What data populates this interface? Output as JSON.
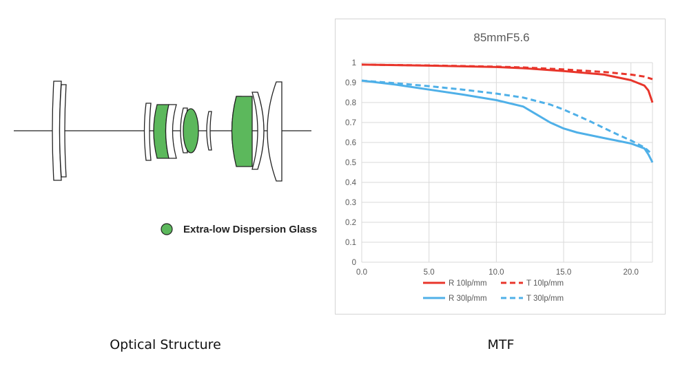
{
  "optical": {
    "legend_label": "Extra-low Dispersion Glass",
    "caption": "Optical Structure",
    "ed_color": "#5cb85c"
  },
  "mtf": {
    "caption": "MTF"
  },
  "chart_data": {
    "type": "line",
    "title": "85mmF5.6",
    "xlabel": "",
    "ylabel": "",
    "xlim": [
      0,
      21.6
    ],
    "ylim": [
      0,
      1
    ],
    "x_ticks": [
      "0.0",
      "5.0",
      "10.0",
      "15.0",
      "20.0"
    ],
    "y_ticks": [
      "0",
      "0.1",
      "0.2",
      "0.3",
      "0.4",
      "0.5",
      "0.6",
      "0.7",
      "0.8",
      "0.9",
      "1"
    ],
    "grid": true,
    "legend_position": "bottom",
    "series": [
      {
        "name": "R 10lp/mm",
        "color": "#e8352b",
        "dash": false,
        "x": [
          0,
          5,
          10,
          12,
          15,
          18,
          20,
          21,
          21.3,
          21.6
        ],
        "y": [
          0.99,
          0.985,
          0.978,
          0.972,
          0.958,
          0.94,
          0.912,
          0.885,
          0.86,
          0.8
        ]
      },
      {
        "name": "T 10lp/mm",
        "color": "#e8352b",
        "dash": true,
        "x": [
          0,
          5,
          10,
          12,
          15,
          18,
          20,
          21,
          21.6
        ],
        "y": [
          0.99,
          0.986,
          0.98,
          0.976,
          0.966,
          0.953,
          0.94,
          0.93,
          0.917
        ]
      },
      {
        "name": "R 30lp/mm",
        "color": "#4fb0e8",
        "dash": false,
        "x": [
          0,
          2.5,
          5,
          7.5,
          10,
          12,
          13,
          14,
          15,
          16,
          18,
          20,
          21,
          21.3,
          21.6
        ],
        "y": [
          0.91,
          0.89,
          0.865,
          0.84,
          0.812,
          0.78,
          0.74,
          0.7,
          0.67,
          0.65,
          0.622,
          0.595,
          0.57,
          0.54,
          0.5
        ]
      },
      {
        "name": "T 30lp/mm",
        "color": "#4fb0e8",
        "dash": true,
        "x": [
          0,
          2.5,
          5,
          7.5,
          10,
          12,
          14,
          15,
          16,
          17,
          18,
          19,
          20,
          21,
          21.6
        ],
        "y": [
          0.91,
          0.897,
          0.882,
          0.865,
          0.845,
          0.825,
          0.79,
          0.765,
          0.735,
          0.705,
          0.672,
          0.64,
          0.61,
          0.575,
          0.54
        ]
      }
    ]
  }
}
